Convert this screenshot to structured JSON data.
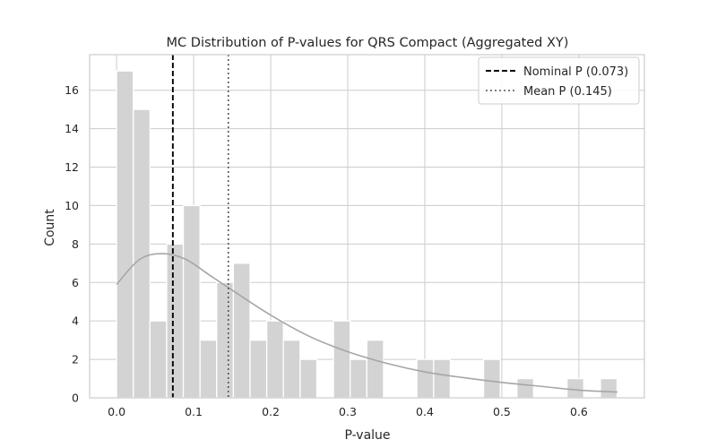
{
  "chart_data": {
    "type": "bar",
    "title": "MC Distribution of P-values for QRS Compact (Aggregated XY)",
    "xlabel": "P-value",
    "ylabel": "Count",
    "xlim": [
      -0.035,
      0.685
    ],
    "ylim": [
      0,
      17.85
    ],
    "grid": true,
    "bin_width": 0.02165,
    "bins": [
      {
        "start": 0.0,
        "count": 17
      },
      {
        "start": 0.0217,
        "count": 15
      },
      {
        "start": 0.0433,
        "count": 4
      },
      {
        "start": 0.065,
        "count": 8
      },
      {
        "start": 0.0866,
        "count": 10
      },
      {
        "start": 0.1083,
        "count": 3
      },
      {
        "start": 0.1299,
        "count": 6
      },
      {
        "start": 0.1516,
        "count": 7
      },
      {
        "start": 0.1732,
        "count": 3
      },
      {
        "start": 0.1949,
        "count": 4
      },
      {
        "start": 0.2165,
        "count": 3
      },
      {
        "start": 0.2382,
        "count": 2
      },
      {
        "start": 0.2598,
        "count": 0
      },
      {
        "start": 0.2815,
        "count": 4
      },
      {
        "start": 0.3031,
        "count": 2
      },
      {
        "start": 0.3248,
        "count": 3
      },
      {
        "start": 0.3464,
        "count": 0
      },
      {
        "start": 0.3681,
        "count": 0
      },
      {
        "start": 0.3897,
        "count": 2
      },
      {
        "start": 0.4114,
        "count": 2
      },
      {
        "start": 0.433,
        "count": 0
      },
      {
        "start": 0.4547,
        "count": 0
      },
      {
        "start": 0.4763,
        "count": 2
      },
      {
        "start": 0.498,
        "count": 0
      },
      {
        "start": 0.5196,
        "count": 1
      },
      {
        "start": 0.5413,
        "count": 0
      },
      {
        "start": 0.5629,
        "count": 0
      },
      {
        "start": 0.5846,
        "count": 1
      },
      {
        "start": 0.6062,
        "count": 0
      },
      {
        "start": 0.6279,
        "count": 1
      }
    ],
    "kde": {
      "x": [
        0.0,
        0.03,
        0.06,
        0.09,
        0.12,
        0.15,
        0.2,
        0.25,
        0.3,
        0.35,
        0.4,
        0.45,
        0.5,
        0.55,
        0.6,
        0.65
      ],
      "y": [
        5.9,
        7.2,
        7.5,
        7.2,
        6.4,
        5.6,
        4.3,
        3.2,
        2.4,
        1.8,
        1.35,
        1.05,
        0.8,
        0.6,
        0.4,
        0.3
      ]
    },
    "reference_lines": [
      {
        "label": "Nominal P (0.073)",
        "x": 0.073,
        "style": "dashed",
        "color": "#000000"
      },
      {
        "label": "Mean P (0.145)",
        "x": 0.145,
        "style": "dotted",
        "color": "#555555"
      }
    ],
    "legend_position": "top-right",
    "x_ticks": [
      {
        "value": 0.0,
        "label": "0.0"
      },
      {
        "value": 0.1,
        "label": "0.1"
      },
      {
        "value": 0.2,
        "label": "0.2"
      },
      {
        "value": 0.3,
        "label": "0.3"
      },
      {
        "value": 0.4,
        "label": "0.4"
      },
      {
        "value": 0.5,
        "label": "0.5"
      },
      {
        "value": 0.6,
        "label": "0.6"
      }
    ],
    "y_ticks": [
      {
        "value": 0,
        "label": "0"
      },
      {
        "value": 2,
        "label": "2"
      },
      {
        "value": 4,
        "label": "4"
      },
      {
        "value": 6,
        "label": "6"
      },
      {
        "value": 8,
        "label": "8"
      },
      {
        "value": 10,
        "label": "10"
      },
      {
        "value": 12,
        "label": "12"
      },
      {
        "value": 14,
        "label": "14"
      },
      {
        "value": 16,
        "label": "16"
      }
    ],
    "colors": {
      "bar": "#d3d3d3",
      "bar_edge": "#ffffff",
      "kde": "#a6a6a6",
      "grid": "#cccccc",
      "spine": "#cccccc",
      "text": "#262626"
    }
  }
}
